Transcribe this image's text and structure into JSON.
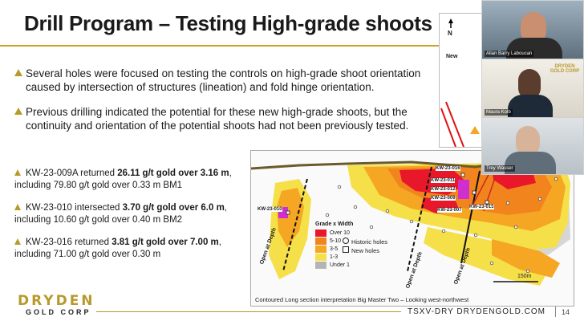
{
  "slide": {
    "title": "Drill Program – Testing High-grade shoots",
    "bullets": [
      "Several holes were focused on testing the controls on high-grade shoot orientation caused by intersection of structures (lineation) and fold hinge orientation.",
      "Previous drilling indicated the potential for these new high-grade shoots, but the continuity and orientation of the potential shoots had not been previously tested."
    ],
    "results": [
      {
        "pre": "KW-23-009A returned ",
        "bold": "26.11 g/t gold over 3.16 m",
        "post": ",",
        "line2": "including 79.80 g/t gold over 0.33 m BM1"
      },
      {
        "pre": "KW-23-010 intersected ",
        "bold": "3.70 g/t gold over 6.0 m",
        "post": ",",
        "line2": "including 10.60 g/t gold over 0.40 m BM2"
      },
      {
        "pre": "KW-23-016 returned ",
        "bold": "3.81 g/t gold over 7.00 m",
        "post": ",",
        "line2": "including 71.00 g/t gold over 0.30 m"
      }
    ],
    "logo": {
      "main": "DRYDEN",
      "sub": "GOLD CORP"
    },
    "footer": {
      "ticker_url": "TSXV-DRY   DRYDENGOLD.COM",
      "page": "14"
    }
  },
  "section_map": {
    "caption": "Contoured Long section interpretation Big Master Two – Looking west-northwest",
    "legend_title": "Grade x Width",
    "legend": [
      {
        "label": "Over 10",
        "color": "#e8182a"
      },
      {
        "label": "5-10",
        "color": "#f2841e"
      },
      {
        "label": "3-5",
        "color": "#f5a623"
      },
      {
        "label": "1-3",
        "color": "#f5e04a"
      },
      {
        "label": "Under 1",
        "color": "#b5b5b5"
      }
    ],
    "symbols": {
      "historic": "Historic holes",
      "new": "New holes"
    },
    "hole_labels": [
      "KW-23-010",
      "KW-23-016",
      "KW-23-011",
      "KW-23-012",
      "KW-23-009",
      "KW-23-007",
      "KW-23-015"
    ],
    "depth_labels": [
      "Open at Depth",
      "Open at Depth",
      "Open at Depth"
    ],
    "scale": "150m"
  },
  "video_panel": {
    "participants": [
      "Allan Barry Laboucan",
      "Maura Kolb",
      "Trey Wasser"
    ],
    "inset_labels": {
      "north": "N",
      "new": "New",
      "company": "DRYDEN GOLD CORP"
    }
  }
}
